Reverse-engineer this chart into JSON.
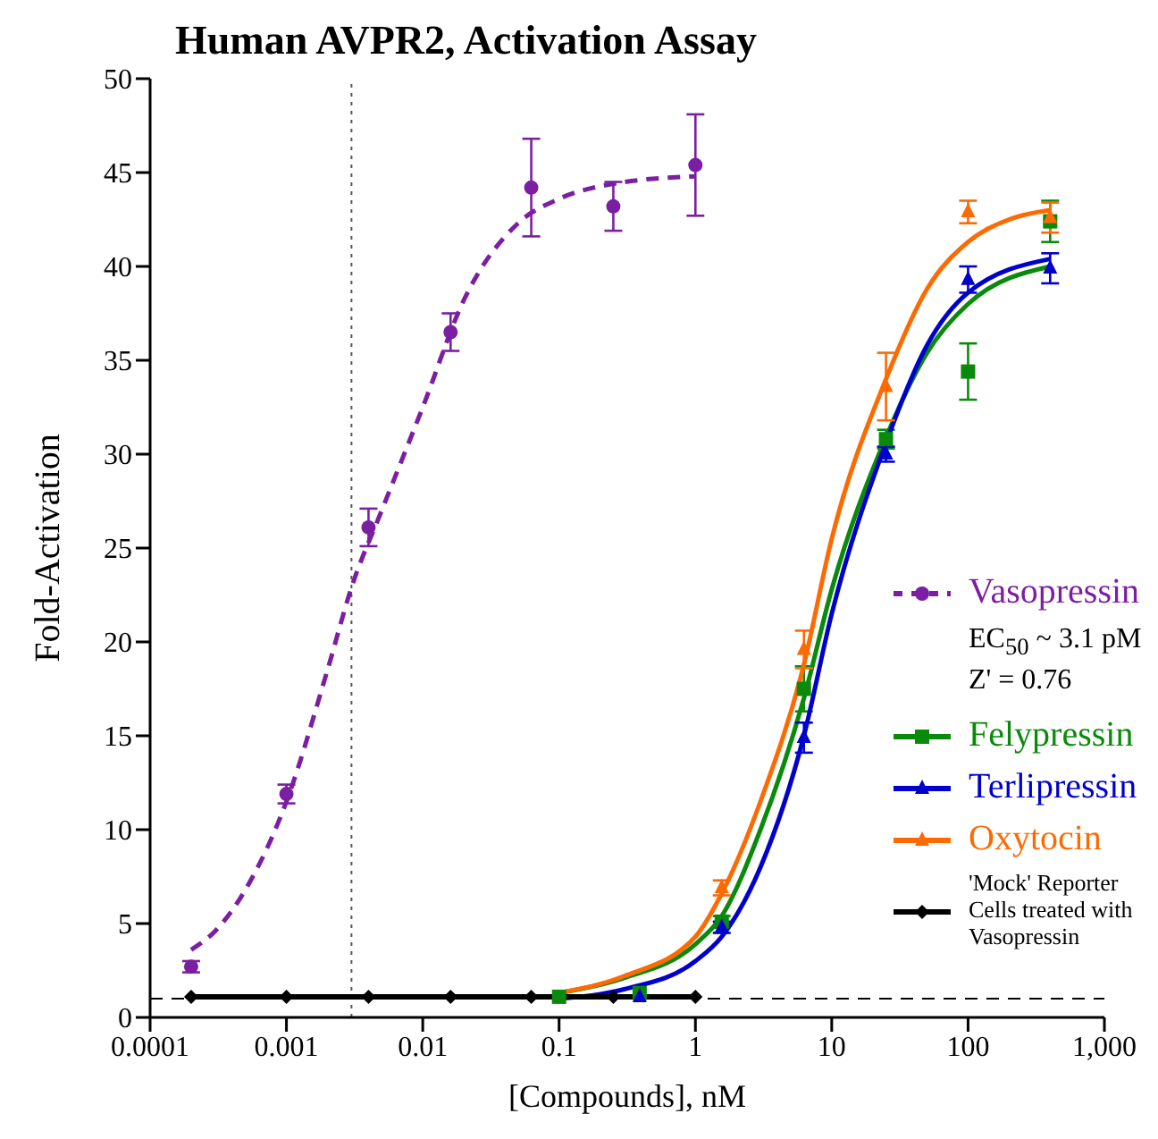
{
  "chart_data": {
    "type": "scatter",
    "title": "Human AVPR2, Activation Assay",
    "xlabel": "[Compounds], nM",
    "ylabel": "Fold-Activation",
    "log": "x",
    "xlim": [
      0.0001,
      1000
    ],
    "xticks": [
      0.0001,
      0.001,
      0.01,
      0.1,
      1,
      10,
      100,
      {
        "value": 1000,
        "label": "1,000"
      }
    ],
    "ylim": [
      0,
      50
    ],
    "yticks": [
      0,
      5,
      10,
      15,
      20,
      25,
      30,
      35,
      40,
      45,
      50
    ],
    "legend": "right",
    "annotations": [
      "EC$_{50}$ ~ 3.1 pM",
      "Z' = 0.76"
    ],
    "ref_lines": [
      {
        "axis": "y",
        "value": 1,
        "label": null,
        "color": "#000000",
        "line_style": "dashed"
      },
      {
        "axis": "x",
        "value": 0.003,
        "label": null,
        "color": "#555555",
        "line_style": "dotted"
      }
    ],
    "series": [
      {
        "name": "Vasopressin",
        "color": "#7b1fa2",
        "marker": "circle",
        "line_style": "dashed",
        "x": [
          0.0002,
          0.001,
          0.004,
          0.016,
          0.0625,
          0.25,
          1
        ],
        "values": [
          2.7,
          11.9,
          26.1,
          36.5,
          44.2,
          43.2,
          45.4
        ],
        "errors": [
          0.3,
          0.5,
          1,
          1,
          2.6,
          1.3,
          2.7
        ]
      },
      {
        "type": "line",
        "color": "#7b1fa2",
        "line_style": "dashed",
        "marker": "none",
        "x": [
          0.0002,
          0.0003,
          0.0005,
          0.001,
          0.002,
          0.003,
          0.005,
          0.01,
          0.02,
          0.05,
          0.1,
          0.25,
          1
        ],
        "values": [
          3.6,
          4.6,
          6.8,
          11.5,
          18.5,
          22.9,
          27,
          32.5,
          38.2,
          42.3,
          43.6,
          44.4,
          44.8
        ]
      },
      {
        "name": "Felypressin",
        "color": "#0a8a0a",
        "marker": "square",
        "x": [
          0.1,
          0.39,
          1.56,
          6.25,
          25,
          100,
          400
        ],
        "values": [
          1.1,
          1.3,
          5.1,
          17.5,
          30.8,
          34.4,
          42.4
        ],
        "errors": [
          null,
          null,
          0.3,
          1.2,
          0.5,
          1.5,
          1.1
        ]
      },
      {
        "type": "line",
        "color": "#0a8a0a",
        "line_style": "solid",
        "marker": "none",
        "x": [
          0.1,
          0.3,
          1,
          1.56,
          3,
          6.25,
          10,
          25,
          50,
          100,
          400
        ],
        "values": [
          1.3,
          2.1,
          3.9,
          5.4,
          10,
          17,
          22.8,
          30.9,
          35.4,
          38,
          40
        ]
      },
      {
        "name": "Terlipressin",
        "color": "#0000cc",
        "marker": "triangle",
        "x": [
          0.39,
          1.56,
          6.25,
          25,
          100,
          400
        ],
        "values": [
          1.1,
          4.8,
          14.9,
          30,
          39.3,
          39.9
        ],
        "errors": [
          null,
          0.3,
          0.8,
          0.4,
          0.7,
          0.8
        ]
      },
      {
        "type": "line",
        "color": "#0000cc",
        "line_style": "solid",
        "marker": "none",
        "x": [
          0.1,
          0.3,
          1,
          1.56,
          3,
          6.25,
          10,
          25,
          50,
          100,
          400
        ],
        "values": [
          1,
          1.5,
          3,
          4.3,
          8,
          15,
          21.5,
          30.6,
          35.8,
          38.6,
          40.4
        ]
      },
      {
        "name": "Oxytocin",
        "color": "#ff6a00",
        "marker": "triangle",
        "x": [
          1.56,
          6.25,
          25,
          100,
          400
        ],
        "values": [
          6.9,
          19.6,
          33.6,
          42.9,
          42.6
        ],
        "errors": [
          0.4,
          1,
          1.8,
          0.6,
          0.8
        ]
      },
      {
        "type": "line",
        "color": "#ff6a00",
        "line_style": "solid",
        "marker": "none",
        "x": [
          0.1,
          0.3,
          1,
          1.56,
          3,
          6.25,
          10,
          25,
          50,
          100,
          200,
          400
        ],
        "values": [
          1.3,
          2.2,
          4.3,
          6.6,
          11.5,
          18.8,
          25.5,
          34,
          38.8,
          41.3,
          42.5,
          43
        ]
      },
      {
        "name": "'Mock' Reporter Cells treated with Vasopressin",
        "type": "line",
        "color": "#000000",
        "marker": "diamond",
        "line_style": "solid",
        "x": [
          0.0002,
          0.001,
          0.004,
          0.016,
          0.0625,
          0.25,
          1
        ],
        "values": [
          1.1,
          1.1,
          1.1,
          1.1,
          1.1,
          1.1,
          1.1
        ]
      }
    ]
  }
}
